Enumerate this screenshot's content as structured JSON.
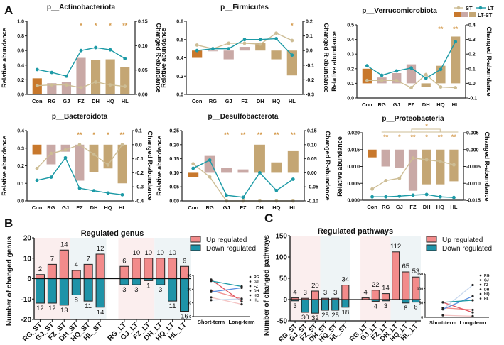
{
  "panel_labels": {
    "a": "A",
    "b": "B",
    "c": "C"
  },
  "colors": {
    "con": "#c8782c",
    "pink": "#c9a9a6",
    "tan": "#c4a674",
    "st_line": "#cdbd95",
    "lt_line": "#1c9aa6",
    "star": "#d4994a",
    "up": "#f28b8b",
    "down": "#1e93a8",
    "shade_pink": "#fbeeee",
    "shade_blue": "#eef4f6"
  },
  "panel_a": {
    "legend": {
      "st": "ST",
      "lt": "LT",
      "lt_st": "LT-ST"
    },
    "categories": [
      "Con",
      "RG",
      "GJ",
      "FZ",
      "DH",
      "HQ",
      "HL"
    ],
    "left_label": "Relative abundance",
    "right_label": "Changed R-abundance",
    "plots": [
      {
        "title": "p__Actinobacteriota",
        "left": {
          "min": 0,
          "max": 1.0,
          "ticks": [
            "0.0",
            "0.2",
            "0.4",
            "0.6",
            "0.8",
            "1.0"
          ]
        },
        "right": {
          "min": 0,
          "max": 0.15,
          "ticks": [
            "0.00",
            "0.05",
            "0.10",
            "0.15"
          ]
        },
        "bars": [
          0.033,
          0.023,
          0.025,
          0.075,
          0.071,
          0.072,
          0.056
        ],
        "st": [
          0.12,
          0.13,
          0.13,
          0.09,
          0.17,
          0.13,
          0.11
        ],
        "lt": [
          0.34,
          0.3,
          0.25,
          0.6,
          0.64,
          0.61,
          0.49
        ],
        "stars": [
          "",
          "",
          "",
          "*",
          "*",
          "*",
          "**"
        ]
      },
      {
        "title": "p__Firmicutes",
        "left": {
          "min": 0,
          "max": 0.8,
          "ticks": [
            "0.0",
            "0.2",
            "0.4",
            "0.6",
            "0.8"
          ]
        },
        "right": {
          "min": -0.3,
          "max": 0.2,
          "ticks": [
            "-0.3",
            "-0.2",
            "-0.1",
            "0.0",
            "0.1",
            "0.2"
          ]
        },
        "bars": [
          -0.05,
          -0.005,
          -0.06,
          0.025,
          0.05,
          -0.06,
          -0.17
        ],
        "st": [
          0.54,
          0.5,
          0.56,
          0.56,
          0.55,
          0.67,
          0.59
        ],
        "lt": [
          0.48,
          0.5,
          0.5,
          0.6,
          0.6,
          0.61,
          0.43
        ],
        "stars": [
          "",
          "",
          "",
          "",
          "",
          "",
          "*"
        ]
      },
      {
        "title": "p__Verrucomicrobiota",
        "left": {
          "min": 0,
          "max": 0.5,
          "ticks": [
            "0.0",
            "0.1",
            "0.2",
            "0.3",
            "0.4",
            "0.5"
          ]
        },
        "right": {
          "min": -0.1,
          "max": 0.4,
          "ticks": [
            "-0.1",
            "0.0",
            "0.1",
            "0.2",
            "0.3",
            "0.4"
          ]
        },
        "bars": [
          0.1,
          0.04,
          0.07,
          0.13,
          -0.025,
          0.12,
          0.32
        ],
        "st": [
          0.12,
          0.12,
          0.12,
          0.07,
          0.16,
          0.075,
          0.07
        ],
        "lt": [
          0.22,
          0.155,
          0.185,
          0.205,
          0.135,
          0.195,
          0.385
        ],
        "stars": [
          "",
          "",
          "",
          "",
          "",
          "**",
          "**"
        ]
      },
      {
        "title": "p__Bacteroidota",
        "left": {
          "min": 0,
          "max": 0.4,
          "ticks": [
            "0.0",
            "0.1",
            "0.2",
            "0.3",
            "0.4"
          ]
        },
        "right": {
          "min": -0.4,
          "max": 0.1,
          "ticks": [
            "-0.4",
            "-0.3",
            "-0.2",
            "-0.1",
            "0.0",
            "0.1"
          ]
        },
        "bars": [
          -0.069,
          -0.14,
          -0.05,
          -0.256,
          -0.194,
          -0.169,
          -0.275
        ],
        "st": [
          0.185,
          0.27,
          0.29,
          0.32,
          0.265,
          0.205,
          0.32
        ],
        "lt": [
          0.117,
          0.135,
          0.245,
          0.072,
          0.058,
          0.045,
          0.035
        ],
        "stars": [
          "",
          "",
          "",
          "**",
          "*",
          "*",
          "**"
        ]
      },
      {
        "title": "p__Desulfobacterota",
        "left": {
          "min": 0,
          "max": 0.25,
          "ticks": [
            "0.00",
            "0.05",
            "0.10",
            "0.15",
            "0.20",
            "0.25"
          ]
        },
        "right": {
          "min": -0.1,
          "max": 0.15,
          "ticks": [
            "-0.10",
            "-0.05",
            "0.00",
            "0.05",
            "0.10",
            "0.15"
          ]
        },
        "bars": [
          -0.015,
          0.06,
          0.018,
          0.012,
          0.1,
          0.037,
          0.077
        ],
        "st": [
          0.132,
          0.085,
          0.0,
          0.0,
          0.0,
          0.0,
          0.0
        ],
        "lt": [
          0.116,
          0.145,
          0.02,
          0.013,
          0.1,
          0.037,
          0.077
        ],
        "stars": [
          "",
          "",
          "**",
          "**",
          "**",
          "**",
          "**"
        ]
      },
      {
        "title": "p__Proteobacteria",
        "left": {
          "min": 0,
          "max": 0.02,
          "ticks": [
            "0.000",
            "0.005",
            "0.010",
            "0.015",
            "0.020"
          ]
        },
        "right": {
          "min": -0.015,
          "max": 0.005,
          "ticks": [
            "-0.015",
            "-0.010",
            "-0.005",
            "0.000",
            "0.005"
          ]
        },
        "bars": [
          -0.0023,
          -0.005,
          -0.0055,
          -0.0122,
          -0.0103,
          -0.0103,
          -0.0094
        ],
        "st": [
          0.0033,
          0.0058,
          0.0065,
          0.0125,
          0.012,
          0.0115,
          0.0105
        ],
        "lt": [
          0.001,
          0.001,
          0.0012,
          0.0015,
          0.0017,
          0.001,
          0.0008
        ],
        "stars": [
          "",
          "**",
          "*",
          "**",
          "*",
          "**",
          "**"
        ],
        "bracket_star": "*"
      }
    ]
  },
  "chart_data": [
    {
      "type": "bar",
      "title": "Regulated genus",
      "ylabel": "Number of changed genus",
      "ylim": [
        -20,
        20
      ],
      "yticks": [
        "-20",
        "-10",
        "0",
        "10",
        "20"
      ],
      "categories": [
        "RG_ST",
        "GJ_ST",
        "FZ_ST",
        "DH_ST",
        "HQ_ST",
        "HL_ST",
        "RG_LT",
        "GJ_LT",
        "FZ_LT",
        "DH_LT",
        "HQ_LT",
        "HL_LT"
      ],
      "series": [
        {
          "name": "Up regulated",
          "values": [
            2,
            7,
            14,
            4,
            7,
            12,
            6,
            10,
            10,
            10,
            10,
            6
          ]
        },
        {
          "name": "Down regulated",
          "values": [
            12,
            12,
            13,
            8,
            11,
            14,
            3,
            3,
            1,
            3,
            11,
            16
          ]
        }
      ],
      "legend": "top-right",
      "inset": {
        "type": "line",
        "x": [
          "Short-term",
          "Long-term"
        ],
        "ylim": [
          0,
          30
        ],
        "yticks": [
          "0",
          "10",
          "20",
          "30"
        ],
        "series": [
          {
            "name": "RG",
            "values": [
              14,
              9
            ]
          },
          {
            "name": "GJ",
            "values": [
              19,
              13
            ]
          },
          {
            "name": "FZ",
            "values": [
              27,
              11
            ]
          },
          {
            "name": "DH",
            "values": [
              12,
              13
            ]
          },
          {
            "name": "HQ",
            "values": [
              18,
              21
            ]
          },
          {
            "name": "HL",
            "values": [
              26,
              22
            ]
          }
        ]
      }
    },
    {
      "type": "bar",
      "title": "Regulated pathways",
      "ylabel": "Number of changed pathways",
      "ylim": [
        -50,
        150
      ],
      "yticks": [
        "-50",
        "0",
        "50",
        "100",
        "150"
      ],
      "categories": [
        "RG_ST",
        "GJ_ST",
        "FZ_ST",
        "DH_ST",
        "HQ_ST",
        "HL_ST",
        "RG_LT",
        "GJ_LT",
        "FZ_LT",
        "DH_LT",
        "HQ_LT",
        "HL_LT"
      ],
      "series": [
        {
          "name": "Up regulated",
          "values": [
            4,
            3,
            20,
            3,
            3,
            34,
            4,
            22,
            14,
            112,
            65,
            53
          ]
        },
        {
          "name": "Down regulated",
          "values": [
            3,
            30,
            32,
            25,
            25,
            18,
            0,
            4,
            3,
            0,
            8,
            6
          ]
        }
      ],
      "legend": "top-right",
      "inset": {
        "type": "line",
        "x": [
          "Short-term",
          "Long-term"
        ],
        "ylim": [
          0,
          150
        ],
        "yticks": [
          "0",
          "50",
          "100",
          "150"
        ],
        "series": [
          {
            "name": "RG",
            "values": [
              7,
              4
            ]
          },
          {
            "name": "GJ",
            "values": [
              33,
              26
            ]
          },
          {
            "name": "FZ",
            "values": [
              52,
              17
            ]
          },
          {
            "name": "DH",
            "values": [
              28,
              112
            ]
          },
          {
            "name": "HQ",
            "values": [
              28,
              73
            ]
          },
          {
            "name": "HL",
            "values": [
              52,
              59
            ]
          }
        ]
      }
    }
  ],
  "inset_colors": [
    "#f4c4c4",
    "#f08a8a",
    "#e05560",
    "#c9d9ee",
    "#5d8fe0",
    "#1c9aa6"
  ]
}
